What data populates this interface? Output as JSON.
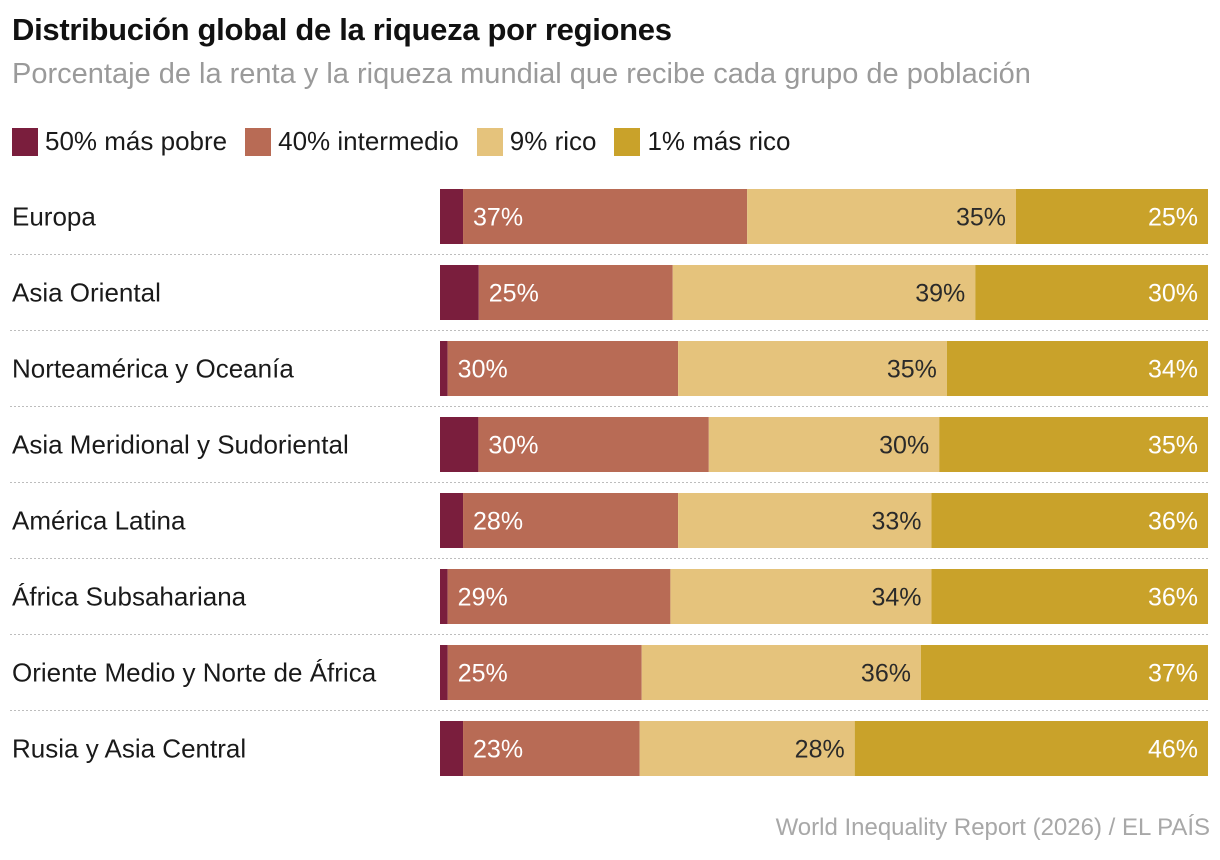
{
  "chart_data": {
    "type": "bar",
    "orientation": "horizontal",
    "stacked": true,
    "title": "Distribución global de la riqueza por regiones",
    "subtitle": "Porcentaje de la renta y la riqueza mundial que recibe cada grupo de población",
    "xlim": [
      0,
      100
    ],
    "unit": "%",
    "categories": [
      "Europa",
      "Asia Oriental",
      "Norteamérica y Oceanía",
      "Asia Meridional y Sudoriental",
      "América Latina",
      "África Subsahariana",
      "Oriente Medio y Norte de África",
      "Rusia y Asia Central"
    ],
    "series": [
      {
        "name": "50% más pobre",
        "color": "#7a1e3d",
        "values": [
          3,
          5,
          1,
          5,
          3,
          1,
          1,
          3
        ],
        "labeled": false
      },
      {
        "name": "40% intermedio",
        "color": "#b86b55",
        "values": [
          37,
          25,
          30,
          30,
          28,
          29,
          25,
          23
        ],
        "labeled": true,
        "label_align": "left"
      },
      {
        "name": "9% rico",
        "color": "#e5c37c",
        "values": [
          35,
          39,
          35,
          30,
          33,
          34,
          36,
          28
        ],
        "labeled": true,
        "label_align": "right"
      },
      {
        "name": "1% más rico",
        "color": "#c9a22a",
        "values": [
          25,
          30,
          34,
          35,
          36,
          36,
          37,
          46
        ],
        "labeled": true,
        "label_align": "right"
      }
    ],
    "legend_position": "top-left",
    "grid": false,
    "source": "World Inequality Report (2026) / EL PAÍS"
  }
}
